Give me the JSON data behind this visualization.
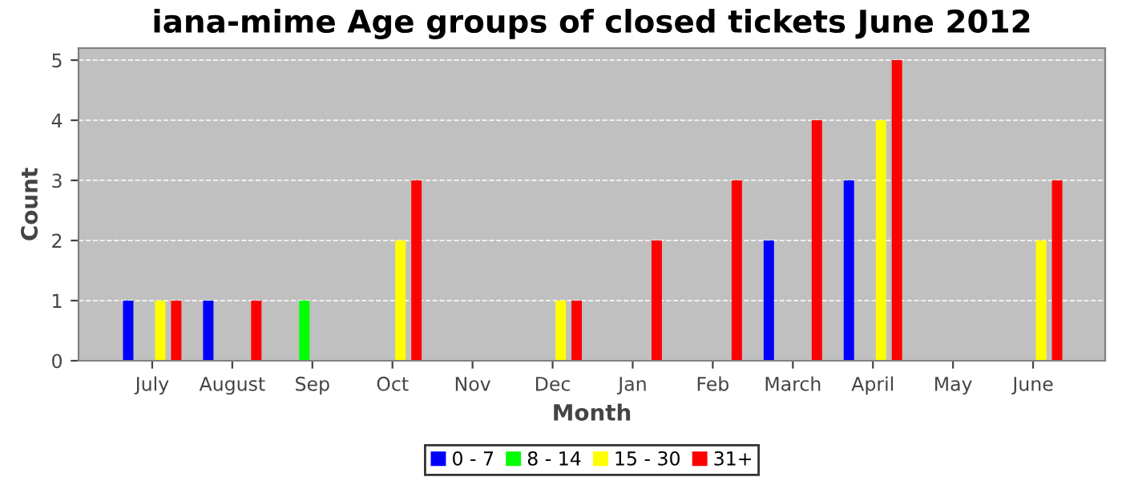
{
  "chart_data": {
    "type": "bar",
    "title": "iana-mime Age groups of closed tickets June 2012",
    "xlabel": "Month",
    "ylabel": "Count",
    "categories": [
      "July",
      "August",
      "Sep",
      "Oct",
      "Nov",
      "Dec",
      "Jan",
      "Feb",
      "March",
      "April",
      "May",
      "June"
    ],
    "series": [
      {
        "name": "0 - 7",
        "color": "#0000ff",
        "values": [
          1,
          1,
          0,
          0,
          0,
          0,
          0,
          0,
          2,
          3,
          0,
          0
        ]
      },
      {
        "name": "8 - 14",
        "color": "#00ff00",
        "values": [
          0,
          0,
          1,
          0,
          0,
          0,
          0,
          0,
          0,
          0,
          0,
          0
        ]
      },
      {
        "name": "15 - 30",
        "color": "#ffff00",
        "values": [
          1,
          0,
          0,
          2,
          0,
          1,
          0,
          0,
          0,
          4,
          0,
          2
        ]
      },
      {
        "name": "31+",
        "color": "#ff0000",
        "values": [
          1,
          1,
          0,
          3,
          0,
          1,
          2,
          3,
          4,
          5,
          0,
          3
        ]
      }
    ],
    "ylim": [
      0,
      5.2
    ],
    "yticks": [
      0,
      1,
      2,
      3,
      4,
      5
    ],
    "grid": "y",
    "legend": "bottom"
  }
}
